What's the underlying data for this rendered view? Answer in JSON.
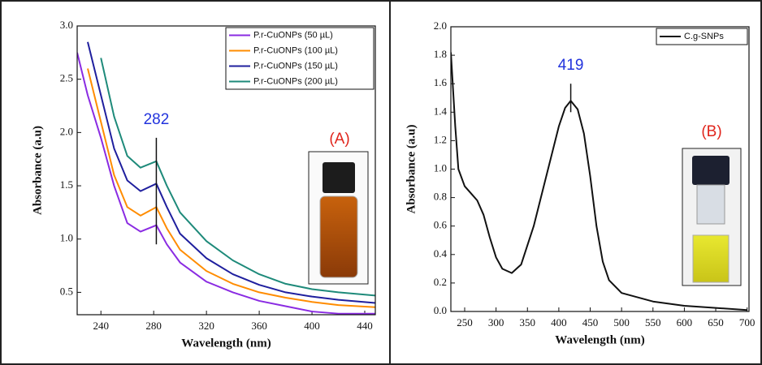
{
  "chart_data": [
    {
      "type": "line",
      "xlabel": "Wavelength (nm)",
      "ylabel": "Absorbance (a.u)",
      "x": [
        222,
        230,
        240,
        250,
        260,
        270,
        282,
        290,
        300,
        320,
        340,
        360,
        380,
        400,
        420,
        448
      ],
      "series": [
        {
          "name": "P.r-CuONPs (50 µL)",
          "color": "#8a2be2",
          "values": [
            2.75,
            2.35,
            1.95,
            1.5,
            1.15,
            1.07,
            1.13,
            0.95,
            0.78,
            0.6,
            0.5,
            0.42,
            0.37,
            0.32,
            0.3,
            0.3
          ]
        },
        {
          "name": "P.r-CuONPs (100 µL)",
          "color": "#ff8c00",
          "values": [
            null,
            2.6,
            2.1,
            1.6,
            1.3,
            1.22,
            1.3,
            1.1,
            0.9,
            0.7,
            0.58,
            0.5,
            0.45,
            0.41,
            0.38,
            0.36
          ]
        },
        {
          "name": "P.r-CuONPs (150 µL)",
          "color": "#1f1f9e",
          "values": [
            null,
            2.85,
            2.35,
            1.85,
            1.55,
            1.45,
            1.52,
            1.3,
            1.05,
            0.82,
            0.67,
            0.57,
            0.5,
            0.46,
            0.43,
            0.4
          ]
        },
        {
          "name": "P.r-CuONPs (200 µL)",
          "color": "#1e8a7a",
          "values": [
            null,
            null,
            2.7,
            2.15,
            1.78,
            1.67,
            1.73,
            1.5,
            1.25,
            0.98,
            0.8,
            0.67,
            0.58,
            0.53,
            0.5,
            0.47
          ]
        }
      ],
      "xlim": [
        222,
        448
      ],
      "xticks": [
        240,
        280,
        320,
        360,
        400,
        440
      ],
      "ylim": [
        0.29,
        3.0
      ],
      "yticks": [
        0.5,
        {
          "value": 1,
          "label": "1.0"
        },
        1.5,
        {
          "value": 2,
          "label": "2.0"
        },
        2.5,
        {
          "value": 3,
          "label": "3.0"
        }
      ],
      "peak": {
        "value": 282,
        "label": "282"
      },
      "peak_range": [
        0.95,
        1.95
      ],
      "inset_label": "(A)",
      "legend": "upper right"
    },
    {
      "type": "line",
      "xlabel": "Wavelength (nm)",
      "ylabel": "Absorbance (a.u)",
      "x": [
        228,
        235,
        240,
        250,
        260,
        270,
        280,
        290,
        300,
        310,
        325,
        340,
        360,
        380,
        400,
        410,
        419,
        430,
        440,
        450,
        460,
        470,
        480,
        500,
        550,
        600,
        650,
        700
      ],
      "series": [
        {
          "name": "C.g-SNPs",
          "color": "#111111",
          "values": [
            1.82,
            1.3,
            1.0,
            0.88,
            0.83,
            0.78,
            0.68,
            0.52,
            0.38,
            0.3,
            0.27,
            0.33,
            0.6,
            0.95,
            1.3,
            1.43,
            1.48,
            1.42,
            1.25,
            0.95,
            0.6,
            0.35,
            0.22,
            0.13,
            0.07,
            0.04,
            0.025,
            0.01
          ]
        }
      ],
      "xlim": [
        228,
        703
      ],
      "xticks": [
        250,
        300,
        350,
        400,
        450,
        500,
        550,
        600,
        650,
        700
      ],
      "ylim": [
        0,
        2.0
      ],
      "yticks": [
        {
          "value": 0,
          "label": "0.0"
        },
        0.2,
        0.4,
        0.6,
        0.8,
        {
          "value": 1,
          "label": "1.0"
        },
        1.2,
        1.4,
        1.6,
        1.8,
        {
          "value": 2,
          "label": "2.0"
        }
      ],
      "peak": {
        "value": 419,
        "label": "419"
      },
      "peak_range": [
        1.4,
        1.6
      ],
      "inset_label": "(B)",
      "legend": "upper right"
    }
  ]
}
